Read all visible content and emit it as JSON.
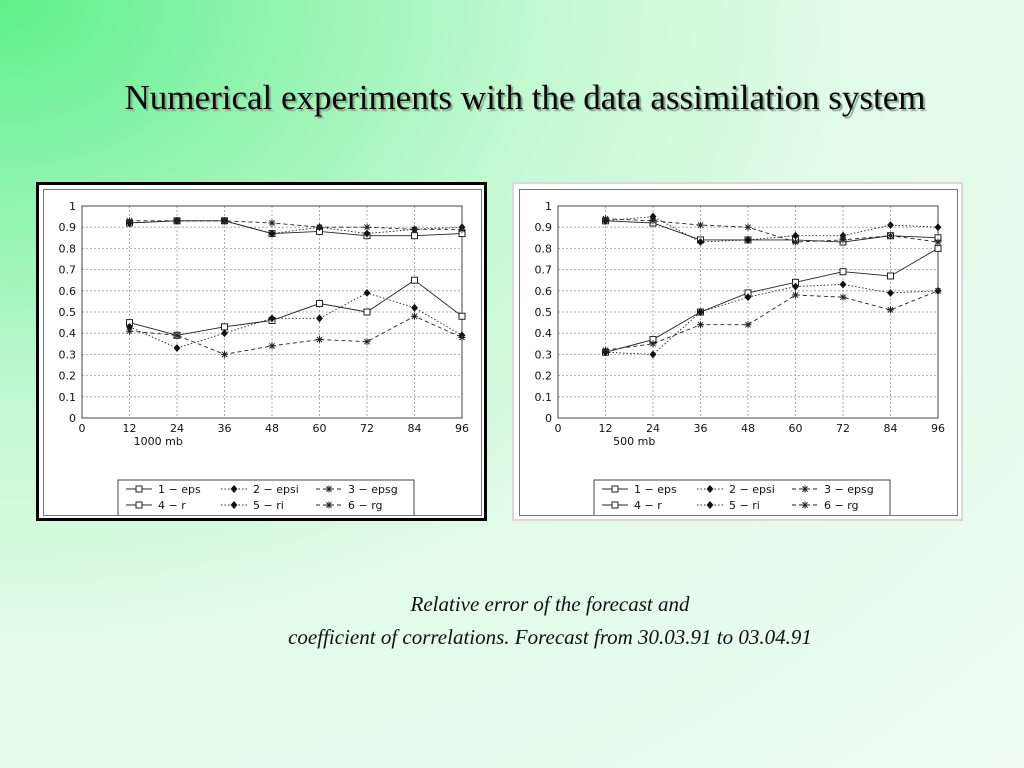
{
  "title": "Numerical experiments with the data assimilation system",
  "caption": {
    "line1": "Relative error of the forecast and",
    "line2": "coefficient of correlations. Forecast from 30.03.91 to 03.04.91"
  },
  "chart_data": [
    {
      "type": "line",
      "xlabel": "1000 mb",
      "x_ticks": [
        0,
        12,
        24,
        36,
        48,
        60,
        72,
        84,
        96
      ],
      "y_ticks": [
        0,
        0.1,
        0.2,
        0.3,
        0.4,
        0.5,
        0.6,
        0.7,
        0.8,
        0.9,
        1
      ],
      "xlim": [
        0,
        96
      ],
      "ylim": [
        0,
        1
      ],
      "grid": true,
      "legend_position": "bottom",
      "x": [
        12,
        24,
        36,
        48,
        60,
        72,
        84,
        96
      ],
      "series": [
        {
          "name": "1 − eps",
          "marker": "square",
          "dash": "solid",
          "values": [
            0.45,
            0.39,
            0.43,
            0.46,
            0.54,
            0.5,
            0.65,
            0.48
          ]
        },
        {
          "name": "2 − epsi",
          "marker": "dot",
          "dash": "dotted",
          "values": [
            0.43,
            0.33,
            0.4,
            0.47,
            0.47,
            0.59,
            0.52,
            0.39
          ]
        },
        {
          "name": "3 − epsg",
          "marker": "star",
          "dash": "dashed",
          "values": [
            0.41,
            0.39,
            0.3,
            0.34,
            0.37,
            0.36,
            0.48,
            0.38
          ]
        },
        {
          "name": "4 − r",
          "marker": "square",
          "dash": "solid",
          "values": [
            0.92,
            0.93,
            0.93,
            0.87,
            0.88,
            0.86,
            0.86,
            0.87
          ]
        },
        {
          "name": "5 − ri",
          "marker": "dot",
          "dash": "dotted",
          "values": [
            0.92,
            0.93,
            0.93,
            0.87,
            0.9,
            0.87,
            0.89,
            0.9
          ]
        },
        {
          "name": "6 − rg",
          "marker": "star",
          "dash": "dashed",
          "values": [
            0.93,
            0.93,
            0.93,
            0.92,
            0.9,
            0.9,
            0.89,
            0.89
          ]
        }
      ]
    },
    {
      "type": "line",
      "xlabel": "500 mb",
      "x_ticks": [
        0,
        12,
        24,
        36,
        48,
        60,
        72,
        84,
        96
      ],
      "y_ticks": [
        0,
        0.1,
        0.2,
        0.3,
        0.4,
        0.5,
        0.6,
        0.7,
        0.8,
        0.9,
        1
      ],
      "xlim": [
        0,
        96
      ],
      "ylim": [
        0,
        1
      ],
      "grid": true,
      "legend_position": "bottom",
      "x": [
        12,
        24,
        36,
        48,
        60,
        72,
        84,
        96
      ],
      "series": [
        {
          "name": "1 − eps",
          "marker": "square",
          "dash": "solid",
          "values": [
            0.31,
            0.37,
            0.5,
            0.59,
            0.64,
            0.69,
            0.67,
            0.8
          ]
        },
        {
          "name": "2 − epsi",
          "marker": "dot",
          "dash": "dotted",
          "values": [
            0.31,
            0.3,
            0.5,
            0.57,
            0.62,
            0.63,
            0.59,
            0.6
          ]
        },
        {
          "name": "3 − epsg",
          "marker": "star",
          "dash": "dashed",
          "values": [
            0.32,
            0.35,
            0.44,
            0.44,
            0.58,
            0.57,
            0.51,
            0.6
          ]
        },
        {
          "name": "4 − r",
          "marker": "square",
          "dash": "solid",
          "values": [
            0.93,
            0.92,
            0.84,
            0.84,
            0.84,
            0.83,
            0.86,
            0.85
          ]
        },
        {
          "name": "5 − ri",
          "marker": "dot",
          "dash": "dotted",
          "values": [
            0.93,
            0.95,
            0.83,
            0.84,
            0.86,
            0.86,
            0.91,
            0.9
          ]
        },
        {
          "name": "6 − rg",
          "marker": "star",
          "dash": "dashed",
          "values": [
            0.94,
            0.93,
            0.91,
            0.9,
            0.83,
            0.84,
            0.86,
            0.83
          ]
        }
      ]
    }
  ]
}
